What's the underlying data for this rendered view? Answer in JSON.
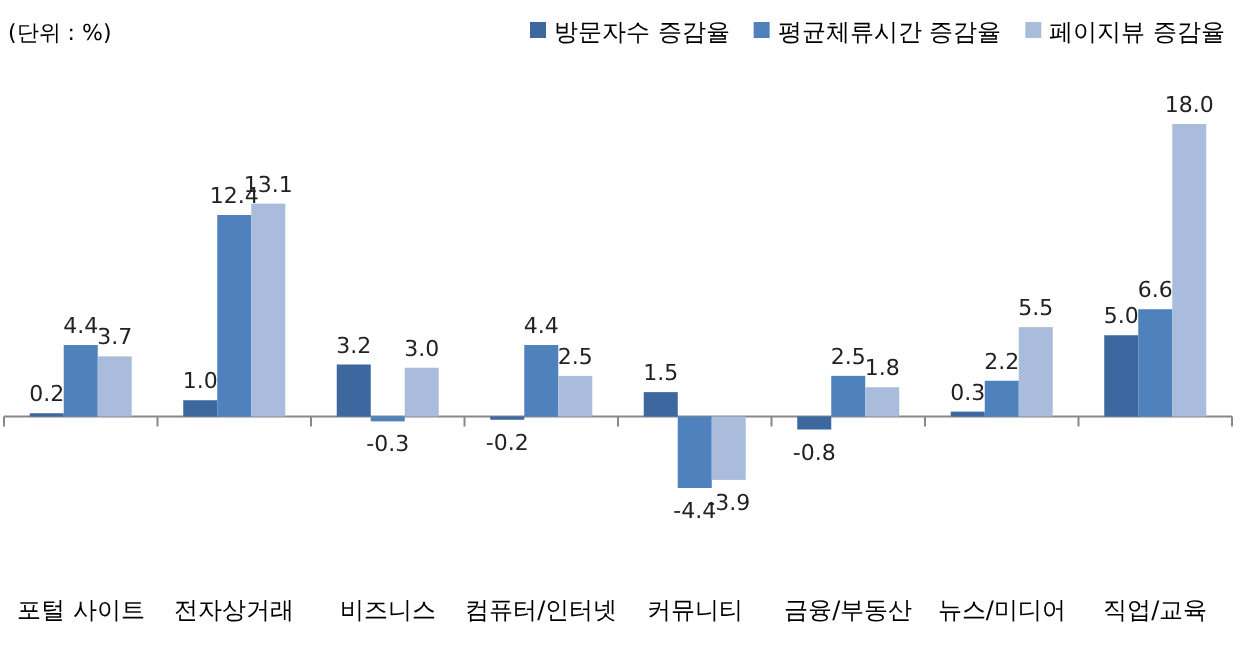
{
  "chart_data": {
    "type": "bar",
    "annotations": [
      "(단위 : %)"
    ],
    "categories": [
      "포털 사이트",
      "전자상거래",
      "비즈니스",
      "컴퓨터/인터넷",
      "커뮤니티",
      "금융/부동산",
      "뉴스/미디어",
      "직업/교육"
    ],
    "series": [
      {
        "name": "방문자수 증감율",
        "color": "#3d679f",
        "values": [
          0.2,
          1.0,
          3.2,
          -0.2,
          1.5,
          -0.8,
          0.3,
          5.0
        ],
        "value_labels": [
          "0.2",
          "1.0",
          "3.2",
          "-0.2",
          "1.5",
          "-0.8",
          "0.3",
          "5.0"
        ]
      },
      {
        "name": "평균체류시간 증감율",
        "color": "#4f81bd",
        "values": [
          4.4,
          12.4,
          -0.3,
          4.4,
          -4.4,
          2.5,
          2.2,
          6.6
        ],
        "value_labels": [
          "4.4",
          "12.4",
          "-0.3",
          "4.4",
          "-4.4",
          "2.5",
          "2.2",
          "6.6"
        ]
      },
      {
        "name": "페이지뷰 증감율",
        "color": "#a9bcdc",
        "values": [
          3.7,
          13.1,
          3.0,
          2.5,
          -3.9,
          1.8,
          5.5,
          18.0
        ],
        "value_labels": [
          "3.7",
          "13.1",
          "3.0",
          "2.5",
          "-3.9",
          "1.8",
          "5.5",
          "18.0"
        ]
      }
    ],
    "legend": "top right"
  }
}
